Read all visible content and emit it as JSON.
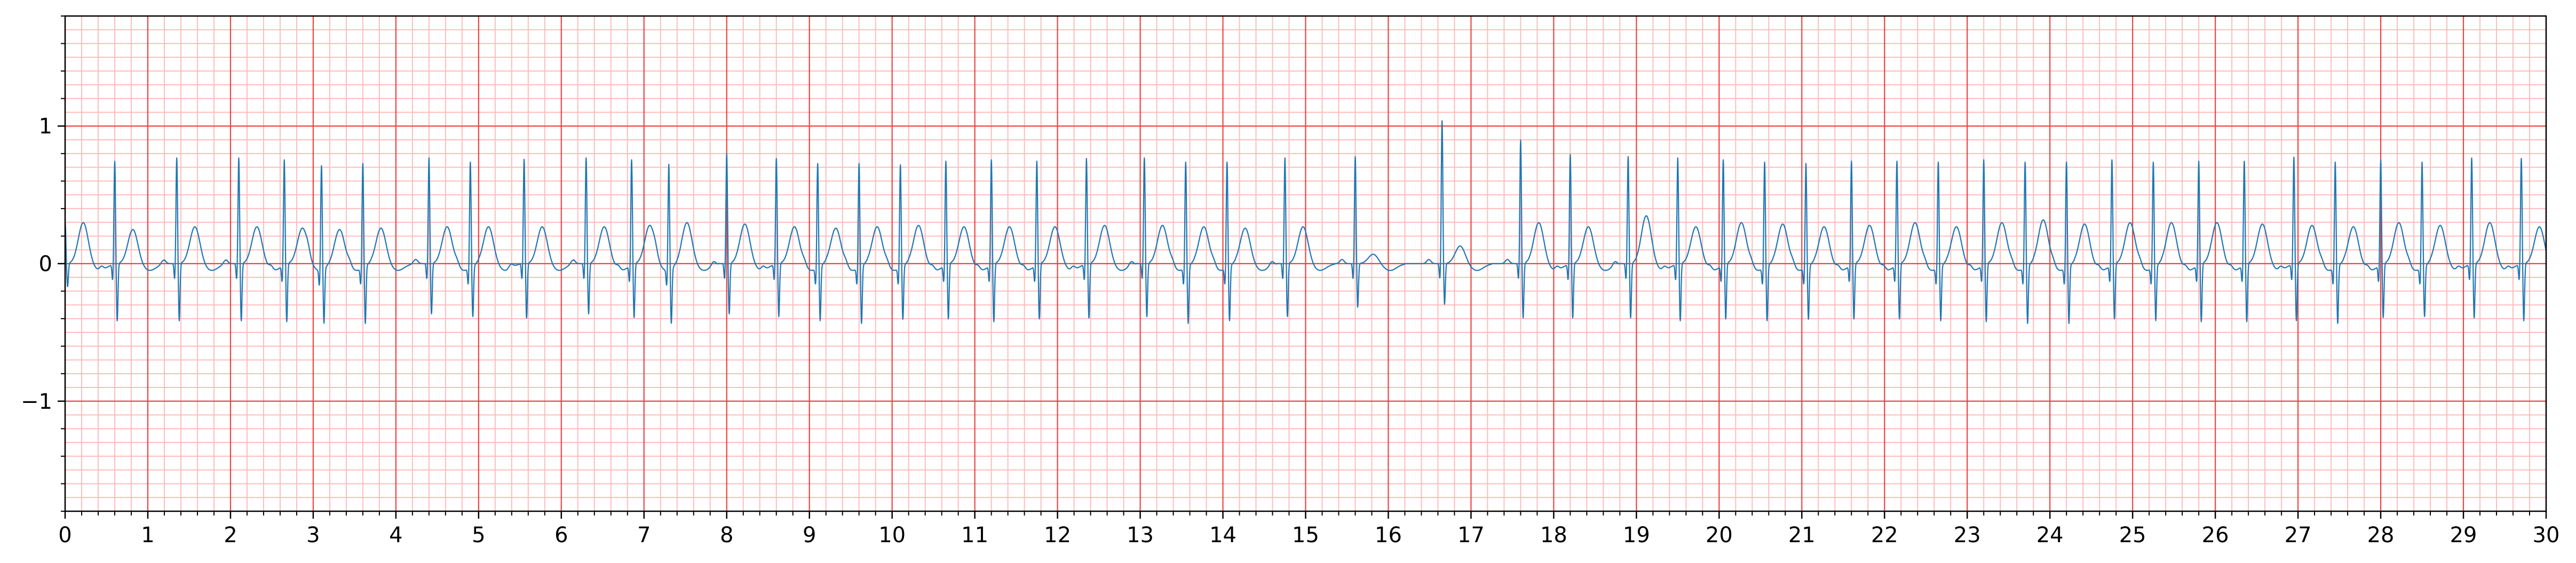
{
  "chart_data": {
    "type": "line",
    "title": "",
    "xlabel": "",
    "ylabel": "",
    "xlim": [
      0,
      30
    ],
    "ylim": [
      -1.8,
      1.8
    ],
    "x_ticks": [
      0,
      1,
      2,
      3,
      4,
      5,
      6,
      7,
      8,
      9,
      10,
      11,
      12,
      13,
      14,
      15,
      16,
      17,
      18,
      19,
      20,
      21,
      22,
      23,
      24,
      25,
      26,
      27,
      28,
      29,
      30
    ],
    "x_tick_labels": [
      "0",
      "1",
      "2",
      "3",
      "4",
      "5",
      "6",
      "7",
      "8",
      "9",
      "10",
      "11",
      "12",
      "13",
      "14",
      "15",
      "16",
      "17",
      "18",
      "19",
      "20",
      "21",
      "22",
      "23",
      "24",
      "25",
      "26",
      "27",
      "28",
      "29",
      "30"
    ],
    "y_ticks": [
      -1,
      0,
      1
    ],
    "y_tick_labels": [
      "−1",
      "0",
      "1"
    ],
    "x_minor_step": 0.2,
    "y_minor_step": 0.1,
    "grid": "ecg-paper",
    "legend": "none",
    "colors": {
      "major_grid": "#ee4444",
      "minor_grid": "#ffbcbc",
      "trace": "#1f77b4",
      "axes": "#000000"
    },
    "series": [
      {
        "beat_times": [
          0.0,
          0.6,
          1.35,
          2.1,
          2.65,
          3.1,
          3.6,
          4.4,
          4.9,
          5.55,
          6.3,
          6.85,
          7.3,
          8.0,
          8.6,
          9.1,
          9.6,
          10.1,
          10.65,
          11.2,
          11.75,
          12.35,
          13.05,
          13.55,
          14.05,
          14.75,
          15.6,
          16.65,
          17.6,
          18.2,
          18.9,
          19.5,
          20.05,
          20.55,
          21.05,
          21.6,
          22.15,
          22.65,
          23.2,
          23.7,
          24.2,
          24.75,
          25.25,
          25.8,
          26.35,
          26.95,
          27.45,
          28.0,
          28.5,
          29.1,
          29.7
        ],
        "r_peaks": [
          0.3,
          0.75,
          0.77,
          0.77,
          0.77,
          0.76,
          0.76,
          0.77,
          0.77,
          0.76,
          0.77,
          0.77,
          0.77,
          0.8,
          0.77,
          0.76,
          0.76,
          0.75,
          0.76,
          0.77,
          0.76,
          0.77,
          0.77,
          0.77,
          0.77,
          0.77,
          0.78,
          1.04,
          0.9,
          0.8,
          0.78,
          0.77,
          0.77,
          0.77,
          0.76,
          0.76,
          0.76,
          0.77,
          0.77,
          0.77,
          0.77,
          0.77,
          0.77,
          0.76,
          0.76,
          0.78,
          0.77,
          0.77,
          0.77,
          0.77,
          0.77
        ],
        "t_waves": [
          0.3,
          0.25,
          0.27,
          0.27,
          0.26,
          0.25,
          0.26,
          0.27,
          0.27,
          0.27,
          0.27,
          0.28,
          0.3,
          0.29,
          0.27,
          0.26,
          0.27,
          0.28,
          0.27,
          0.27,
          0.27,
          0.28,
          0.28,
          0.27,
          0.26,
          0.27,
          0.07,
          0.13,
          0.3,
          0.27,
          0.35,
          0.27,
          0.3,
          0.29,
          0.27,
          0.28,
          0.3,
          0.27,
          0.3,
          0.32,
          0.29,
          0.3,
          0.3,
          0.3,
          0.29,
          0.28,
          0.27,
          0.3,
          0.28,
          0.3,
          0.27
        ],
        "s_depths": [
          -0.15,
          -0.4,
          -0.4,
          -0.4,
          -0.4,
          -0.38,
          -0.4,
          -0.35,
          -0.35,
          -0.38,
          -0.35,
          -0.37,
          -0.38,
          -0.35,
          -0.37,
          -0.38,
          -0.4,
          -0.37,
          -0.38,
          -0.4,
          -0.38,
          -0.38,
          -0.37,
          -0.4,
          -0.38,
          -0.37,
          -0.3,
          -0.28,
          -0.38,
          -0.38,
          -0.38,
          -0.4,
          -0.38,
          -0.38,
          -0.37,
          -0.38,
          -0.38,
          -0.38,
          -0.4,
          -0.4,
          -0.4,
          -0.38,
          -0.38,
          -0.4,
          -0.4,
          -0.4,
          -0.4,
          -0.37,
          -0.35,
          -0.38,
          -0.4
        ]
      }
    ]
  }
}
